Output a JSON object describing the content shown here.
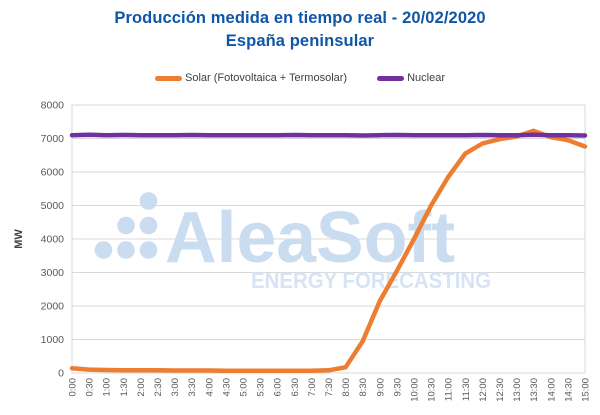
{
  "title": {
    "line1": "Producción medida en tiempo real - 20/02/2020",
    "line2": "España peninsular"
  },
  "legend": [
    {
      "label": "Solar (Fotovoltaica + Termosolar)",
      "color": "#ED7D31"
    },
    {
      "label": "Nuclear",
      "color": "#7030A0"
    }
  ],
  "watermark": {
    "logo": "aleasoft-dots-logo",
    "brand": "AleaSoft",
    "tagline": "ENERGY FORECASTING"
  },
  "colors": {
    "title": "#1056A6",
    "axis_text": "#595959",
    "axis_title_text": "#404040",
    "grid": "#D9D9D9",
    "solar": "#ED7D31",
    "nuclear": "#7030A0",
    "watermark_brand": "#C9DCF0",
    "watermark_tagline": "#D6E4F5"
  },
  "chart_data": {
    "type": "line",
    "title": "Producción medida en tiempo real - 20/02/2020 España peninsular",
    "xlabel": "",
    "ylabel": "MW",
    "ylim": [
      0,
      8000
    ],
    "ytick_step": 1000,
    "grid": true,
    "legend_position": "top",
    "x": [
      "0:00",
      "0:30",
      "1:00",
      "1:30",
      "2:00",
      "2:30",
      "3:00",
      "3:30",
      "4:00",
      "4:30",
      "5:00",
      "5:30",
      "6:00",
      "6:30",
      "7:00",
      "7:30",
      "8:00",
      "8:30",
      "9:00",
      "9:30",
      "10:00",
      "10:30",
      "11:00",
      "11:30",
      "12:00",
      "12:30",
      "13:00",
      "13:30",
      "14:00",
      "14:30",
      "15:00"
    ],
    "series": [
      {
        "id": "solar",
        "name": "Solar (Fotovoltaica + Termosolar)",
        "color": "#ED7D31",
        "values": [
          140,
          100,
          90,
          85,
          80,
          80,
          75,
          75,
          75,
          70,
          70,
          70,
          70,
          70,
          70,
          80,
          170,
          950,
          2150,
          3050,
          4000,
          5000,
          5850,
          6550,
          6850,
          6980,
          7060,
          7230,
          7040,
          6950,
          6760
        ]
      },
      {
        "id": "nuclear",
        "name": "Nuclear",
        "color": "#7030A0",
        "values": [
          7100,
          7110,
          7100,
          7105,
          7100,
          7095,
          7100,
          7105,
          7100,
          7100,
          7095,
          7100,
          7100,
          7105,
          7100,
          7095,
          7100,
          7090,
          7100,
          7105,
          7100,
          7095,
          7100,
          7100,
          7105,
          7100,
          7100,
          7110,
          7100,
          7095,
          7090
        ]
      }
    ]
  }
}
